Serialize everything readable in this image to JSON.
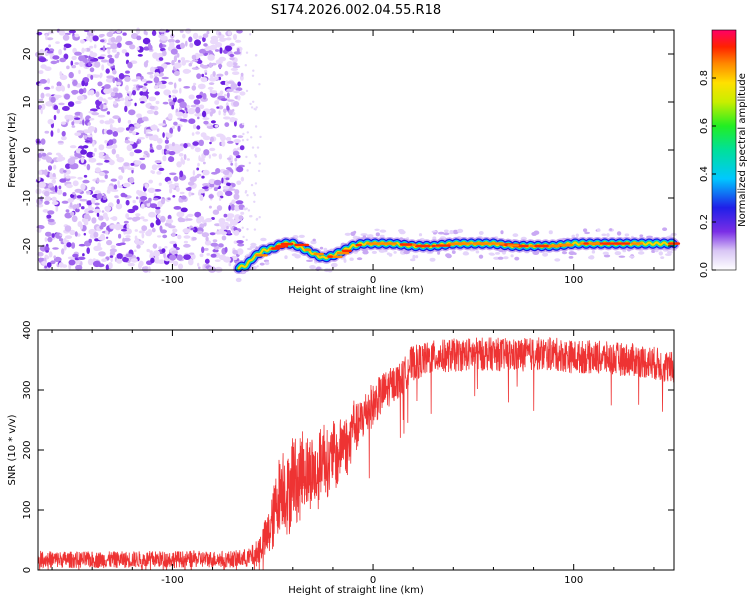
{
  "title": "S174.2026.002.04.55.R18",
  "chart_data": [
    {
      "type": "heatmap",
      "xlabel": "Height of straight line (km)",
      "ylabel": "Frequency (Hz)",
      "xlim": [
        -167,
        150
      ],
      "ylim": [
        -25,
        25
      ],
      "xticks": [
        -100,
        0,
        100
      ],
      "xtick_labels": [
        "-100",
        "0",
        "100"
      ],
      "yticks": [
        -20,
        -10,
        0,
        10,
        20
      ],
      "ytick_labels": [
        "-20",
        "-10",
        "0",
        "10",
        "20"
      ],
      "noise_region_x": [
        -167,
        -65
      ],
      "signal_track": {
        "x": [
          -67,
          -63,
          -60,
          -55,
          -50,
          -45,
          -40,
          -35,
          -30,
          -25,
          -20,
          -15,
          -10,
          -5,
          0,
          10,
          20,
          30,
          40,
          50,
          60,
          70,
          80,
          90,
          100,
          110,
          120,
          130,
          140,
          150
        ],
        "frequency": [
          -24.5,
          -24,
          -22.5,
          -21,
          -20.5,
          -19.5,
          -19.5,
          -20.5,
          -21.5,
          -22.5,
          -22,
          -21,
          -20,
          -19.5,
          -19.5,
          -19.5,
          -20,
          -20,
          -19.5,
          -19.5,
          -19.5,
          -20,
          -20,
          -20,
          -19.5,
          -19.5,
          -19.5,
          -19.5,
          -19.5,
          -19.5
        ]
      },
      "colorbar": {
        "label": "Normalized spectral amplitude",
        "range": [
          0,
          1
        ],
        "ticks": [
          0.0,
          0.2,
          0.4,
          0.6,
          0.8
        ],
        "tick_labels": [
          "0.0",
          "0.2",
          "0.4",
          "0.6",
          "0.8"
        ]
      }
    },
    {
      "type": "line",
      "xlabel": "Height of straight line (km)",
      "ylabel": "SNR (10 * v/v)",
      "xlim": [
        -167,
        150
      ],
      "ylim": [
        0,
        400
      ],
      "xticks": [
        -100,
        0,
        100
      ],
      "xtick_labels": [
        "-100",
        "0",
        "100"
      ],
      "yticks": [
        0,
        100,
        200,
        300,
        400
      ],
      "ytick_labels": [
        "0",
        "100",
        "200",
        "300",
        "400"
      ],
      "series": [
        {
          "name": "SNR",
          "color": "#ee3333",
          "x": [
            -167,
            -150,
            -130,
            -110,
            -90,
            -70,
            -62,
            -58,
            -55,
            -52,
            -50,
            -48,
            -45,
            -42,
            -40,
            -37,
            -35,
            -32,
            -30,
            -28,
            -25,
            -22,
            -20,
            -18,
            -15,
            -12,
            -10,
            -8,
            -5,
            -2,
            0,
            5,
            10,
            15,
            18,
            20,
            25,
            30,
            40,
            50,
            60,
            70,
            80,
            90,
            100,
            110,
            120,
            130,
            140,
            150
          ],
          "values": [
            18,
            17,
            17,
            18,
            18,
            18,
            20,
            28,
            45,
            60,
            80,
            115,
            145,
            120,
            165,
            140,
            175,
            160,
            170,
            150,
            200,
            170,
            200,
            180,
            220,
            200,
            250,
            235,
            255,
            270,
            275,
            295,
            310,
            320,
            340,
            345,
            350,
            355,
            358,
            360,
            360,
            358,
            360,
            360,
            355,
            355,
            352,
            350,
            345,
            335
          ],
          "noise_amplitude": [
            14,
            14,
            14,
            14,
            14,
            14,
            16,
            22,
            30,
            40,
            50,
            60,
            70,
            70,
            70,
            70,
            65,
            65,
            60,
            60,
            60,
            55,
            55,
            50,
            50,
            50,
            45,
            40,
            40,
            40,
            35,
            35,
            30,
            30,
            30,
            30,
            28,
            28,
            28,
            28,
            28,
            28,
            28,
            28,
            28,
            28,
            28,
            28,
            28,
            28
          ]
        }
      ]
    }
  ]
}
